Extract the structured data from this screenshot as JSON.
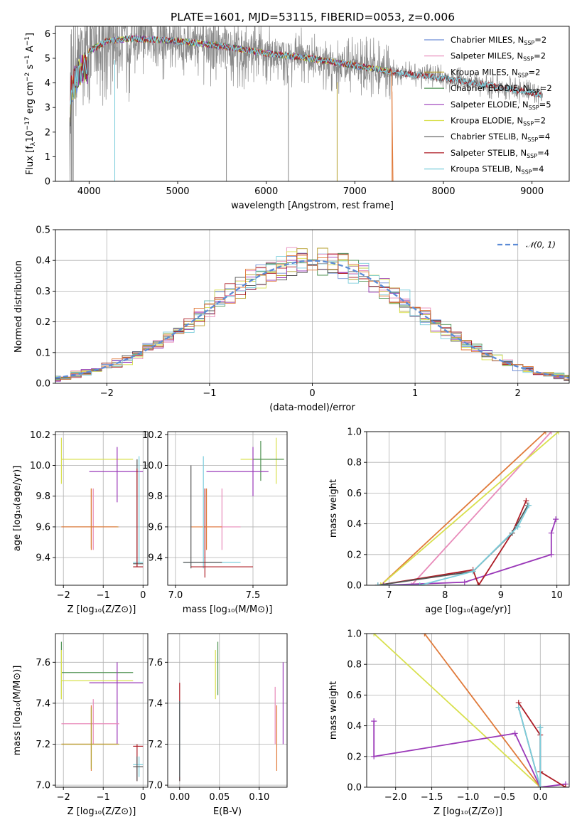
{
  "title": "PLATE=1601, MJD=53115, FIBERID=0053, z=0.006",
  "colors": {
    "Chabrier MILES": "#6d8dd6",
    "Salpeter MILES": "#e88ab9",
    "Kroupa MILES": "#b59f2e",
    "Chabrier ELODIE": "#4f9353",
    "Salpeter ELODIE": "#9a38b8",
    "Kroupa ELODIE": "#d8e04d",
    "Chabrier STELIB": "#555555",
    "Salpeter STELIB": "#ad1c25",
    "Kroupa STELIB": "#7ccedc",
    "spectrum": "#888888",
    "tail": "#e07a3a"
  },
  "chart_data": [
    {
      "id": "spectrum",
      "type": "line",
      "xlabel": "wavelength [Angstrom, rest frame]",
      "ylabel": "Flux [f_λ 10^-17 erg cm^-2 s^-1 A^-1]",
      "xlim": [
        3620,
        9420
      ],
      "ylim": [
        0,
        6.3
      ],
      "xticks": [
        4000,
        5000,
        6000,
        7000,
        8000,
        9000
      ],
      "yticks": [
        0,
        1,
        2,
        3,
        4,
        5,
        6
      ],
      "grid": false,
      "legend_position": "top-right",
      "legend": [
        {
          "name": "Chabrier MILES",
          "nssp": "2"
        },
        {
          "name": "Salpeter MILES",
          "nssp": "2"
        },
        {
          "name": "Kroupa MILES",
          "nssp": "2"
        },
        {
          "name": "Chabrier ELODIE",
          "nssp": "2"
        },
        {
          "name": "Salpeter ELODIE",
          "nssp": "5"
        },
        {
          "name": "Kroupa ELODIE",
          "nssp": "2"
        },
        {
          "name": "Chabrier STELIB",
          "nssp": "4"
        },
        {
          "name": "Salpeter STELIB",
          "nssp": "4"
        },
        {
          "name": "Kroupa STELIB",
          "nssp": "4"
        }
      ],
      "continuum": [
        [
          3800,
          4.3
        ],
        [
          3900,
          5.1
        ],
        [
          4000,
          5.3
        ],
        [
          4200,
          5.7
        ],
        [
          4500,
          5.8
        ],
        [
          5000,
          5.7
        ],
        [
          5500,
          5.5
        ],
        [
          6000,
          5.2
        ],
        [
          6500,
          5.0
        ],
        [
          7000,
          4.7
        ],
        [
          7500,
          4.4
        ],
        [
          8000,
          4.2
        ],
        [
          8500,
          3.9
        ],
        [
          9000,
          3.6
        ],
        [
          9100,
          3.5
        ]
      ]
    },
    {
      "id": "residuals",
      "type": "line",
      "xlabel": "(data-model)/error",
      "ylabel": "Normed distribution",
      "xlim": [
        -2.5,
        2.5
      ],
      "ylim": [
        0,
        0.5
      ],
      "xticks": [
        -2,
        -1,
        0,
        1,
        2
      ],
      "yticks": [
        0.0,
        0.1,
        0.2,
        0.3,
        0.4,
        0.5
      ],
      "grid": true,
      "legend_position": "top-right",
      "series": [
        {
          "name": "𝒩(0, 1)",
          "mu": 0,
          "sigma": 1
        }
      ]
    },
    {
      "id": "z-age",
      "type": "scatter",
      "xlabel": "Z [log₁₀(Z/Z⊙)]",
      "ylabel": "age  [log₁₀(age/yr)]",
      "xlim": [
        -2.2,
        0.12
      ],
      "ylim": [
        9.22,
        10.22
      ],
      "xticks": [
        -2,
        -1,
        0
      ],
      "yticks": [
        9.4,
        9.6,
        9.8,
        10.0,
        10.2
      ],
      "grid": true
    },
    {
      "id": "mass-age",
      "type": "scatter",
      "xlabel": "mass [log₁₀(M/M⊙)]",
      "ylabel": "",
      "xlim": [
        6.95,
        7.72
      ],
      "ylim": [
        9.22,
        10.22
      ],
      "xticks": [
        7.0,
        7.5
      ],
      "yticks": [
        9.4,
        9.6,
        9.8,
        10.0,
        10.2
      ],
      "grid": true
    },
    {
      "id": "age-weight",
      "type": "line",
      "xlabel": "age  [log₁₀(age/yr)]",
      "ylabel": "mass weight",
      "xlim": [
        6.6,
        10.22
      ],
      "ylim": [
        0,
        1
      ],
      "xticks": [
        7,
        8,
        9,
        10
      ],
      "yticks": [
        0.0,
        0.2,
        0.4,
        0.6,
        0.8,
        1.0
      ],
      "grid": true
    },
    {
      "id": "z-mass",
      "type": "scatter",
      "xlabel": "Z [log₁₀(Z/Z⊙)]",
      "ylabel": "mass [log₁₀(M/M⊙)]",
      "xlim": [
        -2.2,
        0.12
      ],
      "ylim": [
        6.99,
        7.74
      ],
      "xticks": [
        -2,
        -1,
        0
      ],
      "yticks": [
        7.0,
        7.2,
        7.4,
        7.6
      ],
      "grid": true
    },
    {
      "id": "ebv-mass",
      "type": "scatter",
      "xlabel": "E(B-V)",
      "ylabel": "",
      "xlim": [
        -0.015,
        0.135
      ],
      "ylim": [
        6.99,
        7.74
      ],
      "xticks": [
        0.0,
        0.05,
        0.1
      ],
      "yticks": [
        7.0,
        7.2,
        7.4,
        7.6
      ],
      "grid": true
    },
    {
      "id": "z-weight",
      "type": "line",
      "xlabel": "Z [log₁₀(Z/Z⊙)]",
      "ylabel": "mass weight",
      "xlim": [
        -2.4,
        0.4
      ],
      "ylim": [
        0,
        1
      ],
      "xticks": [
        -2.0,
        -1.5,
        -1.0,
        -0.5,
        0.0
      ],
      "yticks": [
        0.0,
        0.2,
        0.4,
        0.6,
        0.8,
        1.0
      ],
      "grid": true
    }
  ],
  "crosses": {
    "z-age": [
      {
        "c": "Kroupa ELODIE",
        "x": -2.05,
        "y": 10.04,
        "x1": -2.05,
        "x2": -0.25,
        "y1": 9.88,
        "y2": 10.18
      },
      {
        "c": "Salpeter MILES",
        "x": -1.25,
        "y": 9.6,
        "x1": -2.05,
        "x2": -0.6,
        "y1": 9.45,
        "y2": 9.85
      },
      {
        "c": "Kroupa MILES",
        "x": -1.3,
        "y": 9.6,
        "x1": -2.05,
        "x2": -0.62,
        "y1": 9.46,
        "y2": 9.85
      },
      {
        "c": "tail",
        "x": -1.3,
        "y": 9.6,
        "x1": -2.05,
        "x2": -0.65,
        "y1": 9.45,
        "y2": 9.85
      },
      {
        "c": "Salpeter ELODIE",
        "x": -0.65,
        "y": 9.96,
        "x1": -1.35,
        "x2": 0.0,
        "y1": 9.76,
        "y2": 10.12
      },
      {
        "c": "Chabrier STELIB",
        "x": -0.15,
        "y": 9.36,
        "x1": -0.25,
        "x2": 0.0,
        "y1": 9.34,
        "y2": 10.04
      },
      {
        "c": "Kroupa STELIB",
        "x": -0.1,
        "y": 9.37,
        "x1": -0.25,
        "x2": 0.0,
        "y1": 9.36,
        "y2": 10.06
      },
      {
        "c": "Salpeter STELIB",
        "x": -0.15,
        "y": 9.34,
        "x1": -0.25,
        "x2": 0.0,
        "y1": 9.34,
        "y2": 9.98
      }
    ],
    "mass-age": [
      {
        "c": "Kroupa ELODIE",
        "x": 7.65,
        "y": 10.04,
        "x1": 7.42,
        "x2": 7.7,
        "y1": 9.88,
        "y2": 10.18
      },
      {
        "c": "Chabrier ELODIE",
        "x": 7.55,
        "y": 10.04,
        "x1": 7.5,
        "x2": 7.7,
        "y1": 9.9,
        "y2": 10.16
      },
      {
        "c": "Salpeter ELODIE",
        "x": 7.5,
        "y": 9.96,
        "x1": 7.2,
        "x2": 7.6,
        "y1": 9.8,
        "y2": 10.12
      },
      {
        "c": "Salpeter MILES",
        "x": 7.3,
        "y": 9.6,
        "x1": 7.2,
        "x2": 7.42,
        "y1": 9.45,
        "y2": 9.85
      },
      {
        "c": "tail",
        "x": 7.2,
        "y": 9.6,
        "x1": 7.1,
        "x2": 7.3,
        "y1": 9.45,
        "y2": 9.85
      },
      {
        "c": "Kroupa STELIB",
        "x": 7.18,
        "y": 9.37,
        "x1": 7.05,
        "x2": 7.42,
        "y1": 9.33,
        "y2": 10.06
      },
      {
        "c": "Chabrier STELIB",
        "x": 7.1,
        "y": 9.37,
        "x1": 7.05,
        "x2": 7.3,
        "y1": 9.33,
        "y2": 10.0
      },
      {
        "c": "Salpeter STELIB",
        "x": 7.19,
        "y": 9.34,
        "x1": 7.1,
        "x2": 7.5,
        "y1": 9.27,
        "y2": 9.85
      }
    ],
    "z-mass": [
      {
        "c": "Chabrier ELODIE",
        "x": -2.05,
        "y": 7.55,
        "x1": -2.05,
        "x2": -0.25,
        "y1": 7.42,
        "y2": 7.7
      },
      {
        "c": "Kroupa ELODIE",
        "x": -2.05,
        "y": 7.51,
        "x1": -2.05,
        "x2": -0.25,
        "y1": 7.42,
        "y2": 7.66
      },
      {
        "c": "Salpeter ELODIE",
        "x": -0.65,
        "y": 7.5,
        "x1": -1.35,
        "x2": 0.0,
        "y1": 7.2,
        "y2": 7.6
      },
      {
        "c": "Salpeter MILES",
        "x": -1.25,
        "y": 7.3,
        "x1": -2.05,
        "x2": -0.6,
        "y1": 7.2,
        "y2": 7.42
      },
      {
        "c": "tail",
        "x": -1.3,
        "y": 7.2,
        "x1": -2.05,
        "x2": -0.65,
        "y1": 7.07,
        "y2": 7.39
      },
      {
        "c": "Kroupa MILES",
        "x": -1.3,
        "y": 7.2,
        "x1": -2.05,
        "x2": -0.6,
        "y1": 7.08,
        "y2": 7.38
      },
      {
        "c": "Salpeter STELIB",
        "x": -0.15,
        "y": 7.19,
        "x1": -0.25,
        "x2": 0.0,
        "y1": 7.02,
        "y2": 7.2
      },
      {
        "c": "Kroupa STELIB",
        "x": -0.1,
        "y": 7.1,
        "x1": -0.25,
        "x2": 0.0,
        "y1": 7.04,
        "y2": 7.14
      },
      {
        "c": "Chabrier STELIB",
        "x": -0.15,
        "y": 7.09,
        "x1": -0.25,
        "x2": 0.0,
        "y1": 7.02,
        "y2": 7.14
      }
    ],
    "ebv-mass": [
      {
        "c": "Salpeter STELIB",
        "x": 0.0,
        "y": 7.2,
        "x1": 0.0,
        "x2": 0.0,
        "y1": 7.02,
        "y2": 7.5
      },
      {
        "c": "Kroupa STELIB",
        "x": 0.0,
        "y": 7.1,
        "x1": 0.0,
        "x2": 0.0,
        "y1": 7.04,
        "y2": 7.41
      },
      {
        "c": "Chabrier STELIB",
        "x": 0.0,
        "y": 7.09,
        "x1": 0.0,
        "x2": 0.0,
        "y1": 7.02,
        "y2": 7.41
      },
      {
        "c": "Kroupa ELODIE",
        "x": 0.045,
        "y": 7.51,
        "x1": 0.045,
        "x2": 0.045,
        "y1": 7.42,
        "y2": 7.66
      },
      {
        "c": "Chabrier ELODIE",
        "x": 0.048,
        "y": 7.55,
        "x1": 0.048,
        "x2": 0.048,
        "y1": 7.44,
        "y2": 7.7
      },
      {
        "c": "Salpeter MILES",
        "x": 0.12,
        "y": 7.3,
        "x1": 0.12,
        "x2": 0.12,
        "y1": 7.2,
        "y2": 7.48
      },
      {
        "c": "tail",
        "x": 0.122,
        "y": 7.2,
        "x1": 0.122,
        "x2": 0.122,
        "y1": 7.07,
        "y2": 7.39
      },
      {
        "c": "Salpeter ELODIE",
        "x": 0.13,
        "y": 7.5,
        "x1": 0.13,
        "x2": 0.13,
        "y1": 7.2,
        "y2": 7.6
      }
    ]
  },
  "weight_lines": {
    "age-weight": [
      {
        "c": "tail",
        "pts": [
          [
            6.85,
            0.0
          ],
          [
            9.8,
            1.0
          ]
        ]
      },
      {
        "c": "Salpeter MILES",
        "pts": [
          [
            7.4,
            0.0
          ],
          [
            9.9,
            1.0
          ]
        ]
      },
      {
        "c": "Kroupa ELODIE",
        "pts": [
          [
            6.85,
            0.0
          ],
          [
            10.03,
            1.0
          ]
        ]
      },
      {
        "c": "Salpeter ELODIE",
        "pts": [
          [
            6.9,
            0.0
          ],
          [
            8.35,
            0.02
          ],
          [
            9.9,
            0.2
          ],
          [
            9.9,
            0.34
          ],
          [
            9.98,
            0.43
          ]
        ]
      },
      {
        "c": "Salpeter STELIB",
        "pts": [
          [
            6.8,
            0.0
          ],
          [
            8.5,
            0.1
          ],
          [
            8.6,
            0.0
          ],
          [
            9.2,
            0.34
          ],
          [
            9.45,
            0.55
          ]
        ]
      },
      {
        "c": "Chabrier STELIB",
        "pts": [
          [
            6.8,
            0.0
          ],
          [
            8.5,
            0.09
          ],
          [
            9.2,
            0.34
          ],
          [
            9.48,
            0.52
          ]
        ]
      },
      {
        "c": "Kroupa STELIB",
        "pts": [
          [
            6.8,
            0.0
          ],
          [
            7.55,
            0.0
          ],
          [
            8.5,
            0.09
          ],
          [
            9.3,
            0.38
          ],
          [
            9.5,
            0.52
          ]
        ]
      }
    ],
    "z-weight": [
      {
        "c": "Kroupa ELODIE",
        "pts": [
          [
            -2.3,
            1.0
          ],
          [
            0.0,
            0.0
          ]
        ]
      },
      {
        "c": "tail",
        "pts": [
          [
            -1.6,
            1.0
          ],
          [
            0.0,
            0.0
          ]
        ]
      },
      {
        "c": "Salpeter ELODIE",
        "pts": [
          [
            -2.3,
            0.43
          ],
          [
            -2.3,
            0.2
          ],
          [
            -0.35,
            0.35
          ],
          [
            0.0,
            0.0
          ],
          [
            0.35,
            0.02
          ]
        ]
      },
      {
        "c": "Salpeter STELIB",
        "pts": [
          [
            -0.3,
            0.55
          ],
          [
            0.0,
            0.34
          ],
          [
            0.0,
            0.1
          ],
          [
            0.35,
            0.0
          ]
        ]
      },
      {
        "c": "Chabrier STELIB",
        "pts": [
          [
            -0.3,
            0.52
          ],
          [
            0.0,
            0.0
          ],
          [
            0.0,
            0.39
          ]
        ]
      },
      {
        "c": "Kroupa STELIB",
        "pts": [
          [
            -0.3,
            0.52
          ],
          [
            0.0,
            0.0
          ],
          [
            0.0,
            0.39
          ]
        ]
      }
    ]
  }
}
